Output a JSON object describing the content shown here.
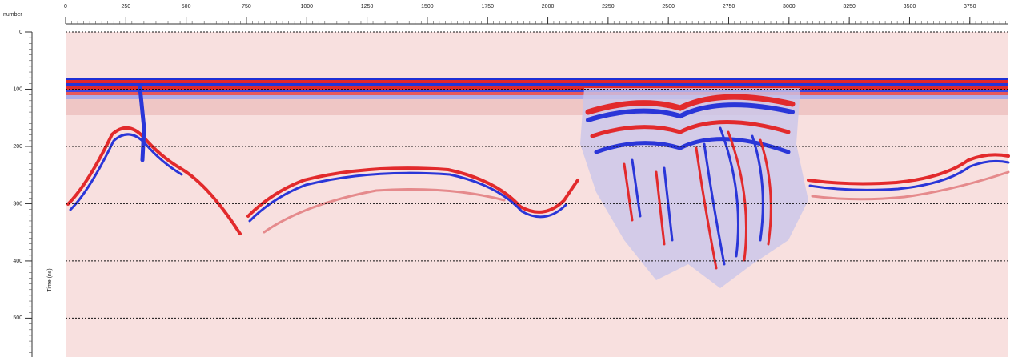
{
  "chart_data": {
    "type": "radargram",
    "xlabel": "number",
    "ylabel": "Time (ns)",
    "xlim": [
      0,
      3910
    ],
    "xticks": [
      0,
      250,
      500,
      750,
      1000,
      1250,
      1500,
      1750,
      2000,
      2250,
      2500,
      2750,
      3000,
      3250,
      3500,
      3750
    ],
    "ylim": [
      0,
      568
    ],
    "yticks": [
      0,
      100,
      200,
      300,
      400,
      500
    ],
    "grid": true
  }
}
